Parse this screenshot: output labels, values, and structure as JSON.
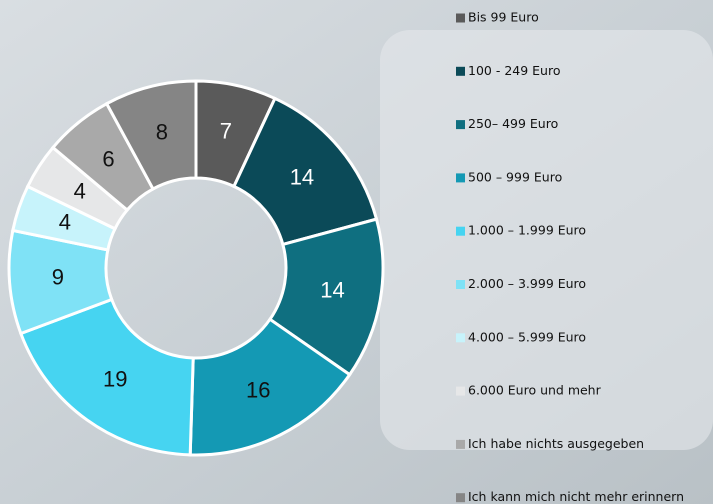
{
  "chart_data": {
    "type": "donut",
    "categories": [
      "Bis 99 Euro",
      "100 - 249 Euro",
      "250– 499 Euro",
      "500 – 999 Euro",
      "1.000 – 1.999 Euro",
      "2.000 – 3.999 Euro",
      "4.000 – 5.999 Euro",
      "6.000 Euro und mehr",
      "Ich habe nichts ausgegeben",
      "Ich kann mich nicht mehr erinnern"
    ],
    "values": [
      7,
      14,
      14,
      16,
      19,
      9,
      4,
      4,
      6,
      8
    ],
    "colors": [
      "#5a5a5a",
      "#0b4a58",
      "#0f6f80",
      "#1499b4",
      "#46d4f1",
      "#7fe2f6",
      "#c7f3fb",
      "#e6e7e8",
      "#a9a9a9",
      "#858585"
    ],
    "legend": "right"
  }
}
